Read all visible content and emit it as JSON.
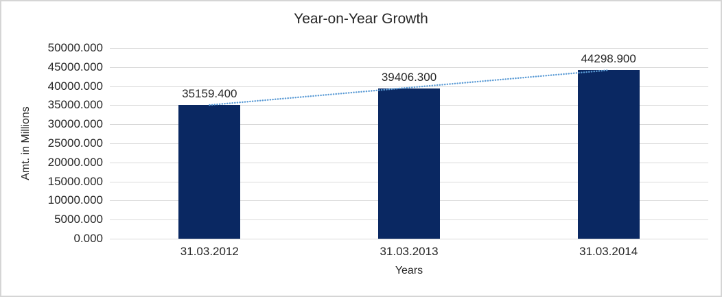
{
  "chart_data": {
    "type": "bar",
    "title": "Year-on-Year Growth",
    "xlabel": "Years",
    "ylabel": "Amt. in Millions",
    "categories": [
      "31.03.2012",
      "31.03.2013",
      "31.03.2014"
    ],
    "values": [
      35159.4,
      39406.3,
      44298.9
    ],
    "data_labels": [
      "35159.400",
      "39406.300",
      "44298.900"
    ],
    "ylim": [
      0,
      50000
    ],
    "ytick_step": 5000,
    "ytick_labels": [
      "0.000",
      "5000.000",
      "10000.000",
      "15000.000",
      "20000.000",
      "25000.000",
      "30000.000",
      "35000.000",
      "40000.000",
      "45000.000",
      "50000.000"
    ],
    "grid": true,
    "legend_position": "none",
    "trendline": {
      "type": "linear",
      "style": "dotted",
      "color": "#5B9BD5"
    },
    "colors": {
      "bar": "#0A2862",
      "gridline": "#D9D9D9",
      "text": "#262626",
      "background": "#FFFFFF",
      "border": "#D5D5D5"
    }
  }
}
